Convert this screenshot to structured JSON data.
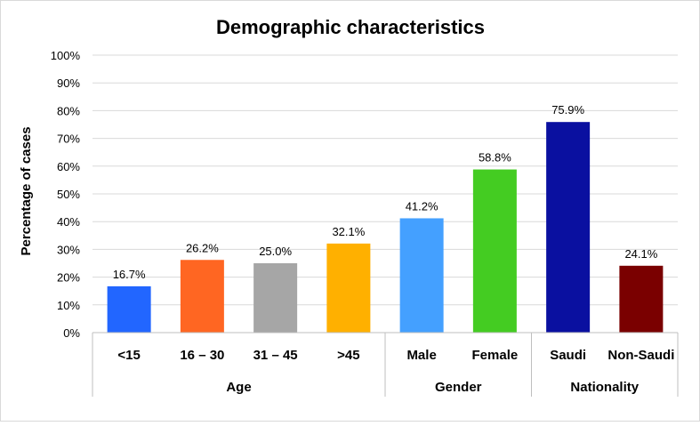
{
  "chart_data": {
    "type": "bar",
    "title": "Demographic characteristics",
    "ylabel": "Percentage of cases",
    "xlabel": "",
    "ylim": [
      0,
      100
    ],
    "y_ticks": [
      "0%",
      "10%",
      "20%",
      "30%",
      "40%",
      "50%",
      "60%",
      "70%",
      "80%",
      "90%",
      "100%"
    ],
    "grid": true,
    "categories": [
      "<15",
      "16 – 30",
      "31 – 45",
      ">45",
      "Male",
      "Female",
      "Saudi",
      "Non-Saudi"
    ],
    "values": [
      16.7,
      26.2,
      25.0,
      32.1,
      41.2,
      58.8,
      75.9,
      24.1
    ],
    "data_labels": [
      "16.7%",
      "26.2%",
      "25.0%",
      "32.1%",
      "41.2%",
      "58.8%",
      "75.9%",
      "24.1%"
    ],
    "colors": [
      "#2266ff",
      "#ff6622",
      "#a6a6a6",
      "#ffb000",
      "#44a0ff",
      "#44cc22",
      "#0a10a0",
      "#7a0000"
    ],
    "groups": [
      {
        "label": "Age",
        "start": 0,
        "count": 4
      },
      {
        "label": "Gender",
        "start": 4,
        "count": 2
      },
      {
        "label": "Nationality",
        "start": 6,
        "count": 2
      }
    ]
  }
}
